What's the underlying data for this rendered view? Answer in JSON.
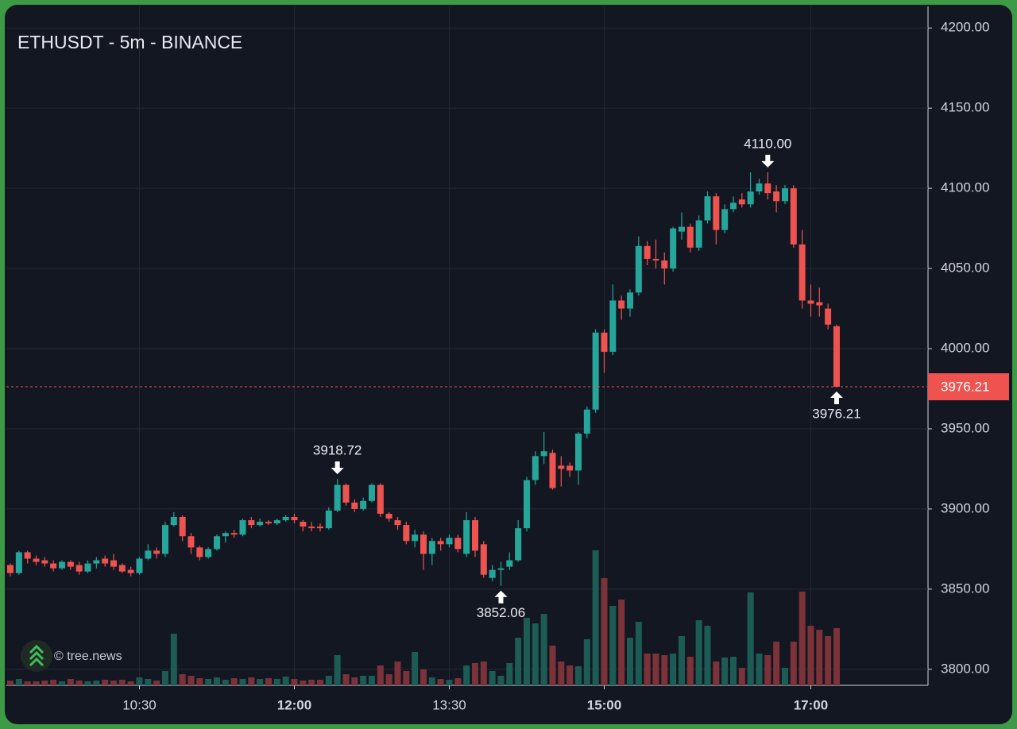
{
  "chart_data": {
    "type": "candlestick",
    "title": "ETHUSDT - 5m - BINANCE",
    "watermark": "© tree.news",
    "categories": [
      null,
      null,
      null,
      null,
      null,
      null,
      null,
      null,
      null,
      null,
      null,
      null,
      null,
      null,
      null,
      "10:30",
      null,
      null,
      null,
      null,
      null,
      null,
      null,
      null,
      null,
      null,
      null,
      null,
      null,
      null,
      null,
      null,
      null,
      "12:00",
      null,
      null,
      null,
      null,
      null,
      null,
      null,
      null,
      null,
      null,
      null,
      null,
      null,
      null,
      null,
      null,
      null,
      "13:30",
      null,
      null,
      null,
      null,
      null,
      null,
      null,
      null,
      null,
      null,
      null,
      null,
      null,
      null,
      null,
      null,
      null,
      "15:00",
      null,
      null,
      null,
      null,
      null,
      null,
      null,
      null,
      null,
      null,
      null,
      null,
      null,
      null,
      null,
      null,
      null,
      null,
      null,
      null,
      null,
      null,
      null,
      "17:00",
      null,
      null,
      null
    ],
    "open": [
      3865,
      3860,
      3873,
      3869,
      3868,
      3866,
      3863,
      3867,
      3865,
      3861,
      3866,
      3869,
      3868,
      3865,
      3862,
      3860,
      3869,
      3874,
      3872,
      3890,
      3895,
      3883,
      3876,
      3870,
      3875,
      3883,
      3885,
      3884,
      3893,
      3890,
      3892,
      3891,
      3893,
      3895,
      3892,
      3889,
      3889,
      3888,
      3899,
      3915,
      3904,
      3900,
      3905,
      3915,
      3897,
      3893,
      3890,
      3880,
      3884,
      3872,
      3880,
      3878,
      3882,
      3872,
      3893,
      3878,
      3857,
      3862,
      3864,
      3868,
      3888,
      3918,
      3933,
      3935,
      3927,
      3927,
      3924,
      3947,
      3962,
      4010,
      3998,
      4030,
      4025,
      4035,
      4064,
      4056,
      4055,
      4050,
      4073,
      4076,
      4063,
      4080,
      4095,
      4074,
      4087,
      4093,
      4090,
      4098,
      4103,
      4098,
      4092,
      4100,
      4065,
      4030,
      4029,
      4025,
      4014
    ],
    "high": [
      3866,
      3874,
      3874,
      3871,
      3870,
      3868,
      3868,
      3868,
      3867,
      3868,
      3870,
      3871,
      3872,
      3866,
      3864,
      3870,
      3878,
      3876,
      3892,
      3898,
      3896,
      3885,
      3877,
      3876,
      3884,
      3886,
      3887,
      3894,
      3895,
      3894,
      3893,
      3894,
      3896,
      3897,
      3893,
      3892,
      3891,
      3901,
      3918.72,
      3916,
      3906,
      3907,
      3916,
      3916,
      3898,
      3895,
      3892,
      3887,
      3886,
      3882,
      3882,
      3884,
      3884,
      3898,
      3895,
      3880,
      3865,
      3867,
      3873,
      3893,
      3920,
      3936,
      3948,
      3937,
      3933,
      3929,
      3948,
      3964,
      4012,
      4012,
      4040,
      4033,
      4037,
      4070,
      4067,
      4068,
      4060,
      4076,
      4085,
      4078,
      4083,
      4098,
      4097,
      4090,
      4095,
      4097,
      4110,
      4106,
      4110,
      4102,
      4102,
      4102,
      4074,
      4040,
      4038,
      4028,
      4015
    ],
    "low": [
      3858,
      3859,
      3866,
      3865,
      3864,
      3861,
      3862,
      3862,
      3859,
      3860,
      3863,
      3864,
      3862,
      3860,
      3858,
      3859,
      3868,
      3869,
      3870,
      3889,
      3880,
      3872,
      3868,
      3869,
      3874,
      3879,
      3882,
      3883,
      3888,
      3889,
      3890,
      3890,
      3892,
      3891,
      3886,
      3886,
      3886,
      3887,
      3898,
      3902,
      3898,
      3899,
      3904,
      3895,
      3892,
      3887,
      3878,
      3876,
      3862,
      3865,
      3874,
      3876,
      3873,
      3870,
      3870,
      3857,
      3855,
      3852.06,
      3862,
      3867,
      3886,
      3915,
      3928,
      3912,
      3914,
      3920,
      3915,
      3944,
      3960,
      3985,
      3996,
      4018,
      4020,
      4033,
      4052,
      4050,
      4040,
      4048,
      4068,
      4060,
      4061,
      4078,
      4065,
      4072,
      4085,
      4088,
      4088,
      4096,
      4093,
      4085,
      4090,
      4063,
      4025,
      4020,
      4020,
      4012,
      3976.21
    ],
    "close": [
      3860,
      3873,
      3869,
      3867,
      3866,
      3863,
      3867,
      3864,
      3861,
      3866,
      3868,
      3866,
      3864,
      3861,
      3860,
      3869,
      3874,
      3872,
      3890,
      3895,
      3883,
      3876,
      3870,
      3875,
      3883,
      3885,
      3884,
      3893,
      3890,
      3892,
      3891,
      3893,
      3895,
      3893,
      3889,
      3888,
      3888,
      3899,
      3915,
      3904,
      3900,
      3905,
      3915,
      3897,
      3894,
      3890,
      3880,
      3884,
      3872,
      3880,
      3878,
      3882,
      3875,
      3893,
      3874,
      3859,
      3862,
      3863,
      3868,
      3888,
      3918,
      3933,
      3936,
      3913,
      3925,
      3924,
      3947,
      3962,
      4010,
      3998,
      4030,
      4025,
      4035,
      4064,
      4056,
      4055,
      4050,
      4075,
      4076,
      4063,
      4080,
      4095,
      4074,
      4087,
      4091,
      4090,
      4098,
      4103,
      4097,
      4092,
      4100,
      4065,
      4030,
      4028,
      4027,
      4015,
      3976.21
    ],
    "volume": [
      6,
      8,
      5,
      5,
      6,
      7,
      5,
      8,
      6,
      5,
      6,
      7,
      6,
      7,
      5,
      10,
      8,
      6,
      18,
      65,
      14,
      12,
      9,
      8,
      10,
      7,
      9,
      8,
      10,
      8,
      9,
      8,
      11,
      8,
      6,
      7,
      7,
      12,
      38,
      14,
      10,
      12,
      12,
      25,
      14,
      30,
      18,
      42,
      20,
      10,
      8,
      7,
      9,
      25,
      28,
      30,
      18,
      12,
      28,
      60,
      85,
      78,
      90,
      50,
      30,
      25,
      24,
      58,
      170,
      135,
      100,
      108,
      60,
      80,
      40,
      40,
      38,
      40,
      62,
      36,
      82,
      75,
      30,
      35,
      36,
      22,
      117,
      40,
      38,
      55,
      22,
      55,
      118,
      75,
      70,
      62,
      72
    ],
    "up_color": "#26a69a",
    "down_color": "#ef5350",
    "up_volume_color": "#1d5b55",
    "down_volume_color": "#7b3238",
    "ylim": [
      3790,
      4212
    ],
    "yticks": [
      {
        "value": 3800,
        "label": "3800.00"
      },
      {
        "value": 3850,
        "label": "3850.00"
      },
      {
        "value": 3900,
        "label": "3900.00"
      },
      {
        "value": 3950,
        "label": "3950.00"
      },
      {
        "value": 4000,
        "label": "4000.00"
      },
      {
        "value": 4050,
        "label": "4050.00"
      },
      {
        "value": 4100,
        "label": "4100.00"
      },
      {
        "value": 4150,
        "label": "4150.00"
      },
      {
        "value": 4200,
        "label": "4200.00"
      }
    ],
    "grid": true,
    "last_price": {
      "value": 3976.21,
      "label": "3976.21"
    },
    "annotations": [
      {
        "index": 38,
        "value": 3918.72,
        "label": "3918.72",
        "side": "above"
      },
      {
        "index": 57,
        "value": 3852.06,
        "label": "3852.06",
        "side": "below"
      },
      {
        "index": 88,
        "value": 4110,
        "label": "4110.00",
        "side": "above"
      },
      {
        "index": 96,
        "value": 3976.21,
        "label": "3976.21",
        "side": "below"
      }
    ]
  }
}
